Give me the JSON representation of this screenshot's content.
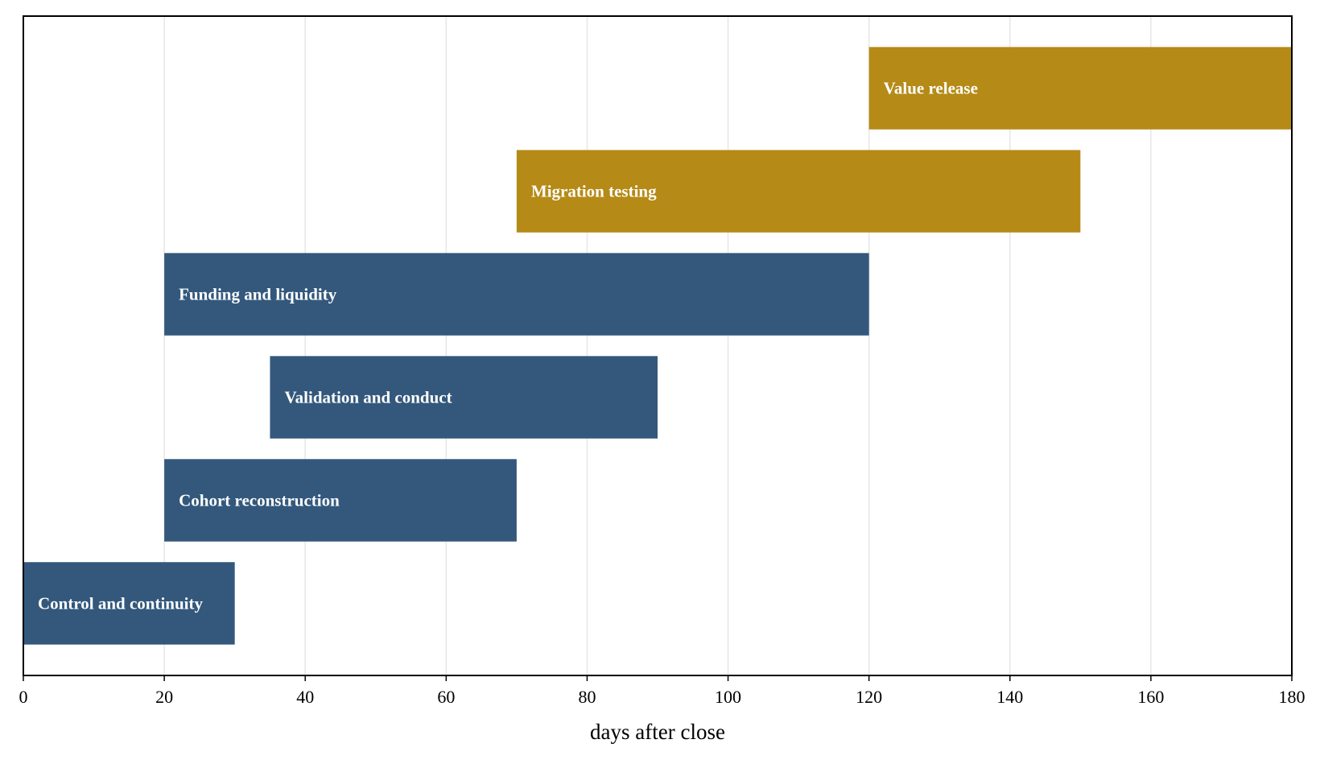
{
  "chart_data": {
    "type": "bar",
    "orientation": "horizontal-gantt",
    "title": "",
    "xlabel": "days after close",
    "ylabel": "",
    "xlim": [
      0,
      180
    ],
    "xticks": [
      0,
      20,
      40,
      60,
      80,
      100,
      120,
      140,
      160,
      180
    ],
    "grid": "vertical",
    "legend": "none",
    "colors": {
      "blue": "#33587c",
      "gold": "#b58a17"
    },
    "tasks": [
      {
        "label": "Control and continuity",
        "start": 0,
        "end": 30,
        "color": "#33587c"
      },
      {
        "label": "Cohort reconstruction",
        "start": 20,
        "end": 70,
        "color": "#33587c"
      },
      {
        "label": "Validation and conduct",
        "start": 35,
        "end": 90,
        "color": "#33587c"
      },
      {
        "label": "Funding and liquidity",
        "start": 20,
        "end": 120,
        "color": "#33587c"
      },
      {
        "label": "Migration testing",
        "start": 70,
        "end": 150,
        "color": "#b58a17"
      },
      {
        "label": "Value release",
        "start": 120,
        "end": 180,
        "color": "#b58a17"
      }
    ]
  }
}
